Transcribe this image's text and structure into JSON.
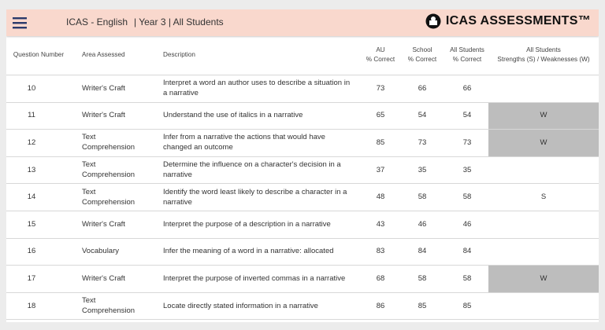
{
  "header": {
    "app": "ICAS - English",
    "context": "| Year 3 | All Students",
    "logo": "ICAS ASSESSMENTS™"
  },
  "table": {
    "columns": [
      [
        "Question Number"
      ],
      [
        "Area Assessed"
      ],
      [
        "Description"
      ],
      [
        "AU",
        "% Correct"
      ],
      [
        "School",
        "% Correct"
      ],
      [
        "All Students",
        "% Correct"
      ],
      [
        "All Students",
        "Strengths (S) / Weaknesses (W)"
      ]
    ],
    "rows": [
      [
        10,
        "Writer's Craft",
        "Interpret a word an author uses to describe a situation in a narrative",
        73,
        66,
        66,
        null
      ],
      [
        11,
        "Writer's Craft",
        "Understand the use of italics in a narrative",
        65,
        54,
        54,
        "W"
      ],
      [
        12,
        "Text Comprehension",
        "Infer from a narrative the actions that would have changed an outcome",
        85,
        73,
        73,
        "W"
      ],
      [
        13,
        "Text Comprehension",
        "Determine the influence on a character's decision in a narrative",
        37,
        35,
        35,
        null
      ],
      [
        14,
        "Text Comprehension",
        "Identify the word least likely to describe a character in a narrative",
        48,
        58,
        58,
        "S"
      ],
      [
        15,
        "Writer's Craft",
        "Interpret the purpose of a description in a narrative",
        43,
        46,
        46,
        null
      ],
      [
        16,
        "Vocabulary",
        "Infer the meaning of a word in a narrative: allocated",
        83,
        84,
        84,
        null
      ],
      [
        17,
        "Writer's Craft",
        "Interpret the purpose of inverted commas in a narrative",
        68,
        58,
        58,
        "W"
      ],
      [
        18,
        "Text Comprehension",
        "Locate directly stated information in a narrative",
        86,
        85,
        85,
        null
      ]
    ]
  }
}
